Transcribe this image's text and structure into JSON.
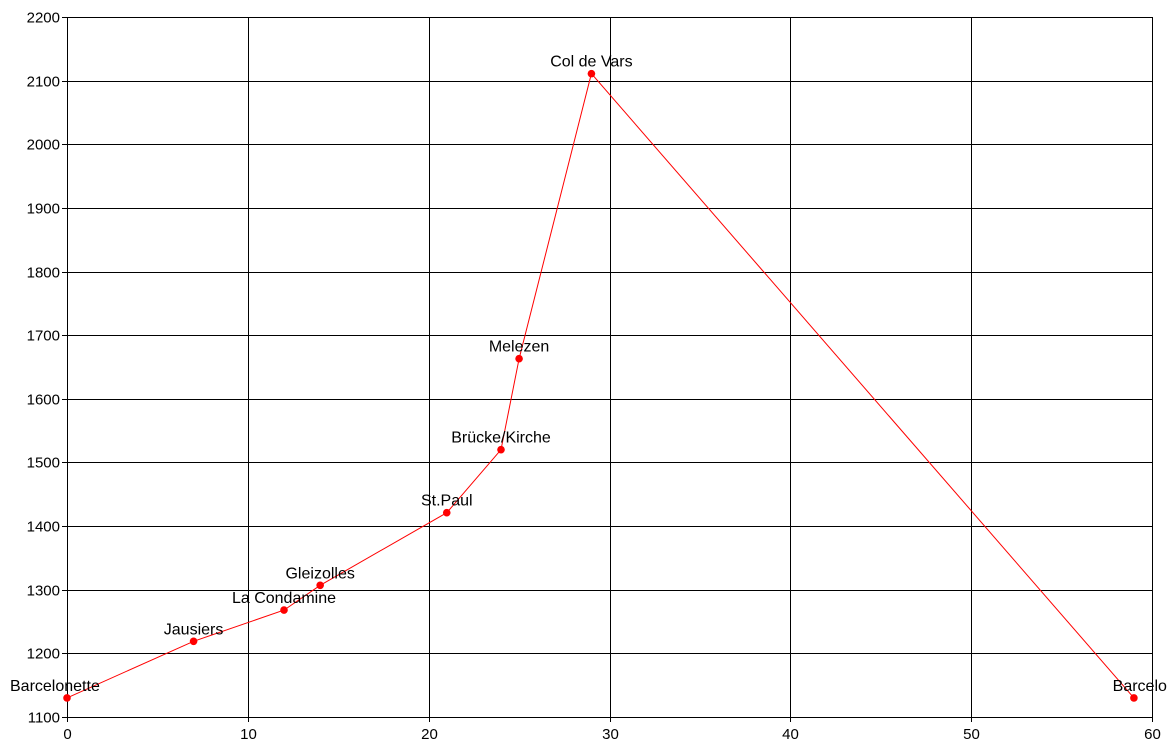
{
  "chart_data": {
    "type": "line",
    "title": "",
    "xlabel": "",
    "ylabel": "",
    "xlim": [
      0,
      60
    ],
    "ylim": [
      1100,
      2200
    ],
    "xticks": [
      0,
      10,
      20,
      30,
      40,
      50,
      60
    ],
    "yticks": [
      1100,
      1200,
      1300,
      1400,
      1500,
      1600,
      1700,
      1800,
      1900,
      2000,
      2100,
      2200
    ],
    "grid": true,
    "series": [
      {
        "color": "#ff0000",
        "points": [
          {
            "x": 0,
            "y": 1130,
            "label": "Barcelonette"
          },
          {
            "x": 7,
            "y": 1219,
            "label": "Jausiers"
          },
          {
            "x": 12,
            "y": 1268,
            "label": "La Condamine"
          },
          {
            "x": 14,
            "y": 1307,
            "label": "Gleizolles"
          },
          {
            "x": 21,
            "y": 1421,
            "label": "St.Paul"
          },
          {
            "x": 24,
            "y": 1520,
            "label": "Brücke/Kirche"
          },
          {
            "x": 25,
            "y": 1663,
            "label": "Melezen"
          },
          {
            "x": 29,
            "y": 2111,
            "label": "Col de Vars"
          },
          {
            "x": 59,
            "y": 1130,
            "label": "Barcelo"
          }
        ]
      }
    ]
  }
}
